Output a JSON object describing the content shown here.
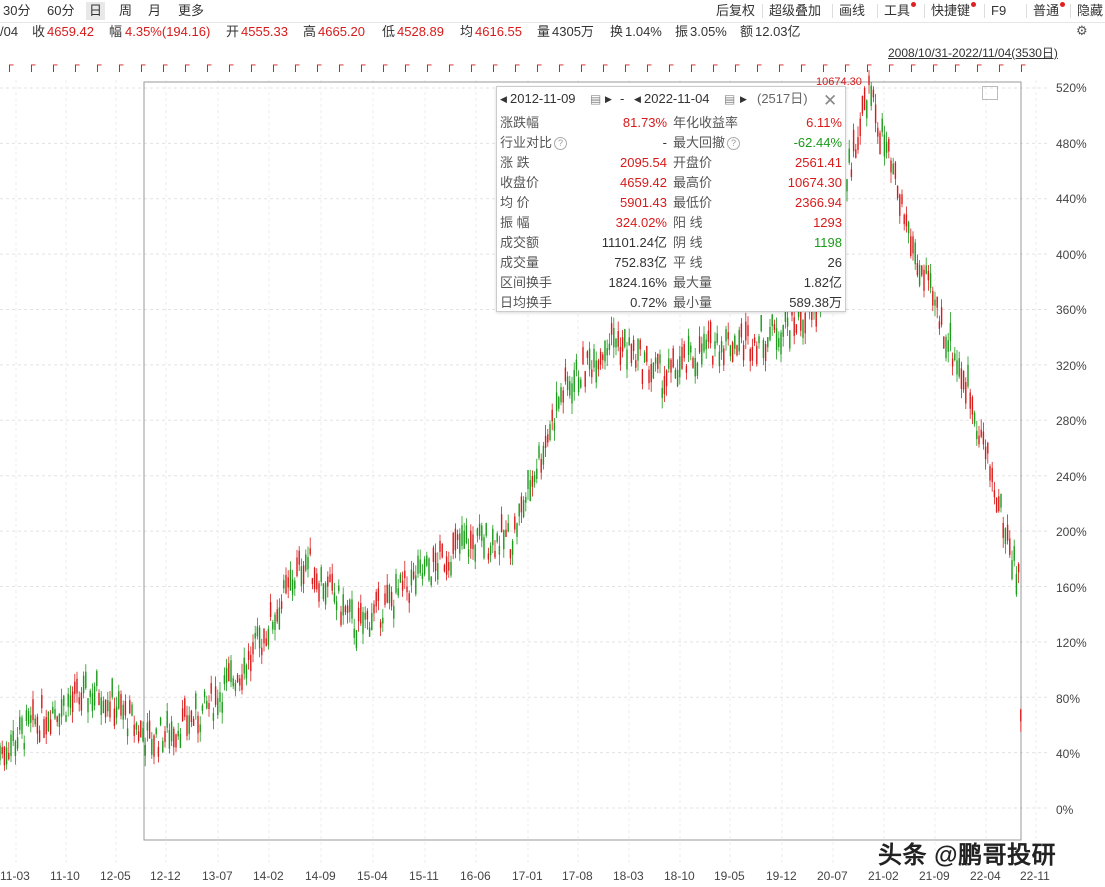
{
  "toolbar": {
    "periods": [
      {
        "label": "30分",
        "active": false
      },
      {
        "label": "60分",
        "active": false
      },
      {
        "label": "日",
        "active": true
      },
      {
        "label": "周",
        "active": false
      },
      {
        "label": "月",
        "active": false
      },
      {
        "label": "更多",
        "active": false
      }
    ],
    "right_items": [
      "后复权",
      "超级叠加",
      "画线",
      "工具",
      "快捷键",
      "F9",
      "普通",
      "隐藏"
    ]
  },
  "quote": {
    "date_frag": "/04",
    "close_label": "收",
    "close": "4659.42",
    "amp_label": "幅",
    "change": "4.35%(194.16)",
    "open_label": "开",
    "open": "4555.33",
    "high_label": "高",
    "high": "4665.20",
    "low_label": "低",
    "low": "4528.89",
    "avg_label": "均",
    "avg": "4616.55",
    "vol_label": "量",
    "vol": "4305万",
    "turnover_label": "换",
    "turnover": "1.04%",
    "swing_label": "振",
    "swing": "3.05%",
    "amount_label": "额",
    "amount": "12.03亿"
  },
  "range_label": "2008/10/31-2022/11/04(3530日)",
  "peak_label": "10674.30",
  "panel": {
    "start_date": "2012-11-09",
    "dash": "-",
    "end_date": "2022-11-04",
    "days": "(2517日)",
    "rows": [
      {
        "l1": "涨跌幅",
        "v1": "81.73%",
        "c1": "red",
        "l2": "年化收益率",
        "v2": "6.11%",
        "c2": "red"
      },
      {
        "l1": "行业对比",
        "v1": "-",
        "c1": "dark",
        "l2": "最大回撤",
        "v2": "-62.44%",
        "c2": "green"
      },
      {
        "l1": "涨  跌",
        "v1": "2095.54",
        "c1": "red",
        "l2": "开盘价",
        "v2": "2561.41",
        "c2": "red"
      },
      {
        "l1": "收盘价",
        "v1": "4659.42",
        "c1": "red",
        "l2": "最高价",
        "v2": "10674.30",
        "c2": "red"
      },
      {
        "l1": "均  价",
        "v1": "5901.43",
        "c1": "red",
        "l2": "最低价",
        "v2": "2366.94",
        "c2": "red"
      },
      {
        "l1": "振  幅",
        "v1": "324.02%",
        "c1": "red",
        "l2": "阳  线",
        "v2": "1293",
        "c2": "red"
      },
      {
        "l1": "成交额",
        "v1": "11101.24亿",
        "c1": "dark",
        "l2": "阴  线",
        "v2": "1198",
        "c2": "green"
      },
      {
        "l1": "成交量",
        "v1": "752.83亿",
        "c1": "dark",
        "l2": "平  线",
        "v2": "26",
        "c2": "dark"
      },
      {
        "l1": "区间换手",
        "v1": "1824.16%",
        "c1": "dark",
        "l2": "最大量",
        "v2": "1.82亿",
        "c2": "dark"
      },
      {
        "l1": "日均换手",
        "v1": "0.72%",
        "c1": "dark",
        "l2": "最小量",
        "v2": "589.38万",
        "c2": "dark"
      }
    ]
  },
  "chart_data": {
    "type": "candlestick",
    "y_axis_labels": [
      "520%",
      "480%",
      "440%",
      "400%",
      "360%",
      "320%",
      "280%",
      "240%",
      "200%",
      "160%",
      "120%",
      "80%",
      "40%",
      "0%"
    ],
    "y_values": [
      520,
      480,
      440,
      400,
      360,
      320,
      280,
      240,
      200,
      160,
      120,
      80,
      40,
      0
    ],
    "x_tick_labels": [
      "11-03",
      "11-10",
      "12-05",
      "12-12",
      "13-07",
      "14-02",
      "14-09",
      "15-04",
      "15-11",
      "16-06",
      "17-01",
      "17-08",
      "18-03",
      "18-10",
      "19-05",
      "19-12",
      "20-07",
      "21-02",
      "21-09",
      "22-04",
      "22-11"
    ],
    "trend_pct": [
      {
        "x": "11-03",
        "y": 40
      },
      {
        "x": "11-10",
        "y": 70
      },
      {
        "x": "12-05",
        "y": 85
      },
      {
        "x": "12-12",
        "y": 48
      },
      {
        "x": "13-07",
        "y": 68
      },
      {
        "x": "14-02",
        "y": 110
      },
      {
        "x": "14-09",
        "y": 180
      },
      {
        "x": "15-04",
        "y": 130
      },
      {
        "x": "15-11",
        "y": 160
      },
      {
        "x": "16-06",
        "y": 190
      },
      {
        "x": "17-01",
        "y": 195
      },
      {
        "x": "17-08",
        "y": 300
      },
      {
        "x": "18-03",
        "y": 340
      },
      {
        "x": "18-10",
        "y": 310
      },
      {
        "x": "19-05",
        "y": 335
      },
      {
        "x": "19-12",
        "y": 340
      },
      {
        "x": "20-07",
        "y": 360
      },
      {
        "x": "21-02",
        "y": 520
      },
      {
        "x": "21-09",
        "y": 390
      },
      {
        "x": "22-04",
        "y": 300
      },
      {
        "x": "22-11",
        "y": 160
      }
    ],
    "colors": {
      "up": "#d91a1a",
      "down": "#1a9b1a"
    }
  },
  "watermark": "头条 @鹏哥投研"
}
